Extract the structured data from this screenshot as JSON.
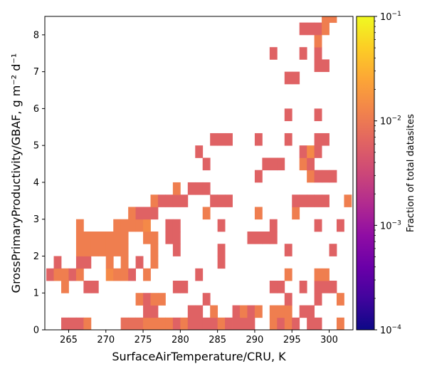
{
  "chart_data": {
    "type": "heatmap",
    "xlabel": "SurfaceAirTemperature/CRU,  K",
    "ylabel": "GrossPrimaryProductivity/GBAF,  g m⁻² d⁻¹",
    "xlim": [
      261.8,
      303.2
    ],
    "ylim": [
      0,
      8.5
    ],
    "x_bin_width": 1.0,
    "y_bin_height": 0.333,
    "xticks": [
      265,
      270,
      275,
      280,
      285,
      290,
      295,
      300
    ],
    "xtick_labels": [
      "265",
      "270",
      "275",
      "280",
      "285",
      "290",
      "295",
      "300"
    ],
    "yticks": [
      0,
      1,
      2,
      3,
      4,
      5,
      6,
      7,
      8
    ],
    "ytick_labels": [
      "0",
      "1",
      "2",
      "3",
      "4",
      "5",
      "6",
      "7",
      "8"
    ],
    "colorbar": {
      "label": "Fraction of total datasites",
      "scale": "log",
      "range": [
        0.0001,
        0.1
      ],
      "tick_values": [
        0.0001,
        0.001,
        0.01,
        0.1
      ],
      "tick_bases": [
        "10",
        "10",
        "10",
        "10"
      ],
      "tick_exponents": [
        "−4",
        "−3",
        "−2",
        "−1"
      ],
      "colormap": [
        "#0d0887",
        "#41049d",
        "#6a00a8",
        "#8f0da4",
        "#b12a90",
        "#cc4778",
        "#e16462",
        "#f2844b",
        "#fca636",
        "#fcce25",
        "#f0f921"
      ]
    },
    "cells_note": "each cell: [x_bin_start_K, y_bin_start, fraction]",
    "cells": [
      [
        264,
        0,
        0.006
      ],
      [
        265,
        0,
        0.006
      ],
      [
        266,
        0,
        0.006
      ],
      [
        267,
        0,
        0.011
      ],
      [
        272,
        0,
        0.008
      ],
      [
        273,
        0,
        0.008
      ],
      [
        274,
        0,
        0.008
      ],
      [
        275,
        0,
        0.011
      ],
      [
        276,
        0,
        0.011
      ],
      [
        277,
        0,
        0.011
      ],
      [
        278,
        0,
        0.011
      ],
      [
        279,
        0,
        0.006
      ],
      [
        280,
        0,
        0.011
      ],
      [
        281,
        0,
        0.006
      ],
      [
        282,
        0,
        0.006
      ],
      [
        283,
        0,
        0.006
      ],
      [
        284,
        0,
        0.006
      ],
      [
        285,
        0,
        0.011
      ],
      [
        286,
        0,
        0.006
      ],
      [
        287,
        0,
        0.006
      ],
      [
        288,
        0,
        0.006
      ],
      [
        289,
        0,
        0.006
      ],
      [
        292,
        0,
        0.011
      ],
      [
        293,
        0,
        0.006
      ],
      [
        294,
        0,
        0.011
      ],
      [
        295,
        0,
        0.006
      ],
      [
        297,
        0,
        0.006
      ],
      [
        298,
        0,
        0.006
      ],
      [
        301,
        0,
        0.011
      ],
      [
        275,
        0.333,
        0.006
      ],
      [
        276,
        0.333,
        0.006
      ],
      [
        281,
        0.333,
        0.006
      ],
      [
        282,
        0.333,
        0.006
      ],
      [
        284,
        0.333,
        0.011
      ],
      [
        287,
        0.333,
        0.006
      ],
      [
        288,
        0.333,
        0.011
      ],
      [
        289,
        0.333,
        0.006
      ],
      [
        290,
        0.333,
        0.011
      ],
      [
        292,
        0.333,
        0.011
      ],
      [
        293,
        0.333,
        0.011
      ],
      [
        294,
        0.333,
        0.011
      ],
      [
        296,
        0.333,
        0.006
      ],
      [
        297,
        0.333,
        0.006
      ],
      [
        274,
        0.667,
        0.011
      ],
      [
        275,
        0.667,
        0.006
      ],
      [
        276,
        0.667,
        0.011
      ],
      [
        277,
        0.667,
        0.011
      ],
      [
        283,
        0.667,
        0.006
      ],
      [
        294,
        0.667,
        0.006
      ],
      [
        298,
        0.667,
        0.006
      ],
      [
        301,
        0.667,
        0.011
      ],
      [
        264,
        1.0,
        0.011
      ],
      [
        267,
        1.0,
        0.006
      ],
      [
        268,
        1.0,
        0.006
      ],
      [
        279,
        1.0,
        0.006
      ],
      [
        280,
        1.0,
        0.006
      ],
      [
        292,
        1.0,
        0.006
      ],
      [
        293,
        1.0,
        0.006
      ],
      [
        296,
        1.0,
        0.006
      ],
      [
        298,
        1.0,
        0.006
      ],
      [
        299,
        1.0,
        0.006
      ],
      [
        300,
        1.0,
        0.006
      ],
      [
        262,
        1.333,
        0.006
      ],
      [
        263,
        1.333,
        0.011
      ],
      [
        264,
        1.333,
        0.011
      ],
      [
        265,
        1.333,
        0.006
      ],
      [
        266,
        1.333,
        0.011
      ],
      [
        270,
        1.333,
        0.014
      ],
      [
        271,
        1.333,
        0.011
      ],
      [
        272,
        1.333,
        0.011
      ],
      [
        273,
        1.333,
        0.006
      ],
      [
        275,
        1.333,
        0.011
      ],
      [
        282,
        1.333,
        0.006
      ],
      [
        294,
        1.333,
        0.011
      ],
      [
        298,
        1.333,
        0.011
      ],
      [
        299,
        1.333,
        0.011
      ],
      [
        263,
        1.667,
        0.006
      ],
      [
        266,
        1.667,
        0.006
      ],
      [
        267,
        1.667,
        0.006
      ],
      [
        270,
        1.667,
        0.011
      ],
      [
        272,
        1.667,
        0.011
      ],
      [
        274,
        1.667,
        0.006
      ],
      [
        276,
        1.667,
        0.011
      ],
      [
        285,
        1.667,
        0.006
      ],
      [
        266,
        2.0,
        0.011
      ],
      [
        267,
        2.0,
        0.011
      ],
      [
        268,
        2.0,
        0.011
      ],
      [
        269,
        2.0,
        0.011
      ],
      [
        270,
        2.0,
        0.011
      ],
      [
        271,
        2.0,
        0.011
      ],
      [
        272,
        2.0,
        0.011
      ],
      [
        276,
        2.0,
        0.011
      ],
      [
        279,
        2.0,
        0.006
      ],
      [
        285,
        2.0,
        0.006
      ],
      [
        294,
        2.0,
        0.006
      ],
      [
        300,
        2.0,
        0.006
      ],
      [
        266,
        2.333,
        0.011
      ],
      [
        267,
        2.333,
        0.011
      ],
      [
        268,
        2.333,
        0.011
      ],
      [
        269,
        2.333,
        0.011
      ],
      [
        270,
        2.333,
        0.011
      ],
      [
        271,
        2.333,
        0.011
      ],
      [
        272,
        2.333,
        0.011
      ],
      [
        275,
        2.333,
        0.011
      ],
      [
        276,
        2.333,
        0.011
      ],
      [
        278,
        2.333,
        0.006
      ],
      [
        279,
        2.333,
        0.006
      ],
      [
        289,
        2.333,
        0.006
      ],
      [
        290,
        2.333,
        0.006
      ],
      [
        291,
        2.333,
        0.006
      ],
      [
        292,
        2.333,
        0.006
      ],
      [
        266,
        2.667,
        0.011
      ],
      [
        271,
        2.667,
        0.011
      ],
      [
        272,
        2.667,
        0.011
      ],
      [
        273,
        2.667,
        0.011
      ],
      [
        274,
        2.667,
        0.011
      ],
      [
        275,
        2.667,
        0.014
      ],
      [
        278,
        2.667,
        0.006
      ],
      [
        279,
        2.667,
        0.006
      ],
      [
        285,
        2.667,
        0.006
      ],
      [
        292,
        2.667,
        0.006
      ],
      [
        298,
        2.667,
        0.006
      ],
      [
        301,
        2.667,
        0.006
      ],
      [
        273,
        3.0,
        0.011
      ],
      [
        274,
        3.0,
        0.006
      ],
      [
        275,
        3.0,
        0.006
      ],
      [
        276,
        3.0,
        0.006
      ],
      [
        283,
        3.0,
        0.011
      ],
      [
        290,
        3.0,
        0.011
      ],
      [
        295,
        3.0,
        0.011
      ],
      [
        276,
        3.333,
        0.011
      ],
      [
        277,
        3.333,
        0.006
      ],
      [
        278,
        3.333,
        0.006
      ],
      [
        279,
        3.333,
        0.006
      ],
      [
        280,
        3.333,
        0.006
      ],
      [
        284,
        3.333,
        0.006
      ],
      [
        285,
        3.333,
        0.006
      ],
      [
        286,
        3.333,
        0.006
      ],
      [
        295,
        3.333,
        0.006
      ],
      [
        296,
        3.333,
        0.006
      ],
      [
        297,
        3.333,
        0.006
      ],
      [
        298,
        3.333,
        0.006
      ],
      [
        299,
        3.333,
        0.006
      ],
      [
        302,
        3.333,
        0.011
      ],
      [
        279,
        3.667,
        0.011
      ],
      [
        281,
        3.667,
        0.006
      ],
      [
        282,
        3.667,
        0.006
      ],
      [
        283,
        3.667,
        0.006
      ],
      [
        290,
        4.0,
        0.006
      ],
      [
        297,
        4.0,
        0.011
      ],
      [
        298,
        4.0,
        0.006
      ],
      [
        299,
        4.0,
        0.006
      ],
      [
        300,
        4.0,
        0.006
      ],
      [
        283,
        4.333,
        0.006
      ],
      [
        291,
        4.333,
        0.006
      ],
      [
        292,
        4.333,
        0.006
      ],
      [
        293,
        4.333,
        0.006
      ],
      [
        296,
        4.333,
        0.011
      ],
      [
        297,
        4.333,
        0.006
      ],
      [
        282,
        4.667,
        0.006
      ],
      [
        296,
        4.667,
        0.006
      ],
      [
        297,
        4.667,
        0.014
      ],
      [
        298,
        4.667,
        0.006
      ],
      [
        284,
        5.0,
        0.006
      ],
      [
        285,
        5.0,
        0.006
      ],
      [
        286,
        5.0,
        0.006
      ],
      [
        290,
        5.0,
        0.006
      ],
      [
        294,
        5.0,
        0.006
      ],
      [
        298,
        5.0,
        0.006
      ],
      [
        299,
        5.0,
        0.006
      ],
      [
        294,
        5.667,
        0.006
      ],
      [
        298,
        5.667,
        0.006
      ],
      [
        294,
        6.667,
        0.006
      ],
      [
        295,
        6.667,
        0.006
      ],
      [
        298,
        7.0,
        0.006
      ],
      [
        299,
        7.0,
        0.006
      ],
      [
        292,
        7.333,
        0.006
      ],
      [
        296,
        7.333,
        0.006
      ],
      [
        298,
        7.333,
        0.006
      ],
      [
        298,
        7.667,
        0.011
      ],
      [
        296,
        8.0,
        0.006
      ],
      [
        297,
        8.0,
        0.006
      ],
      [
        298,
        8.0,
        0.006
      ],
      [
        299,
        8.0,
        0.011
      ],
      [
        299,
        8.333,
        0.011
      ],
      [
        300,
        8.333,
        0.011
      ]
    ]
  }
}
